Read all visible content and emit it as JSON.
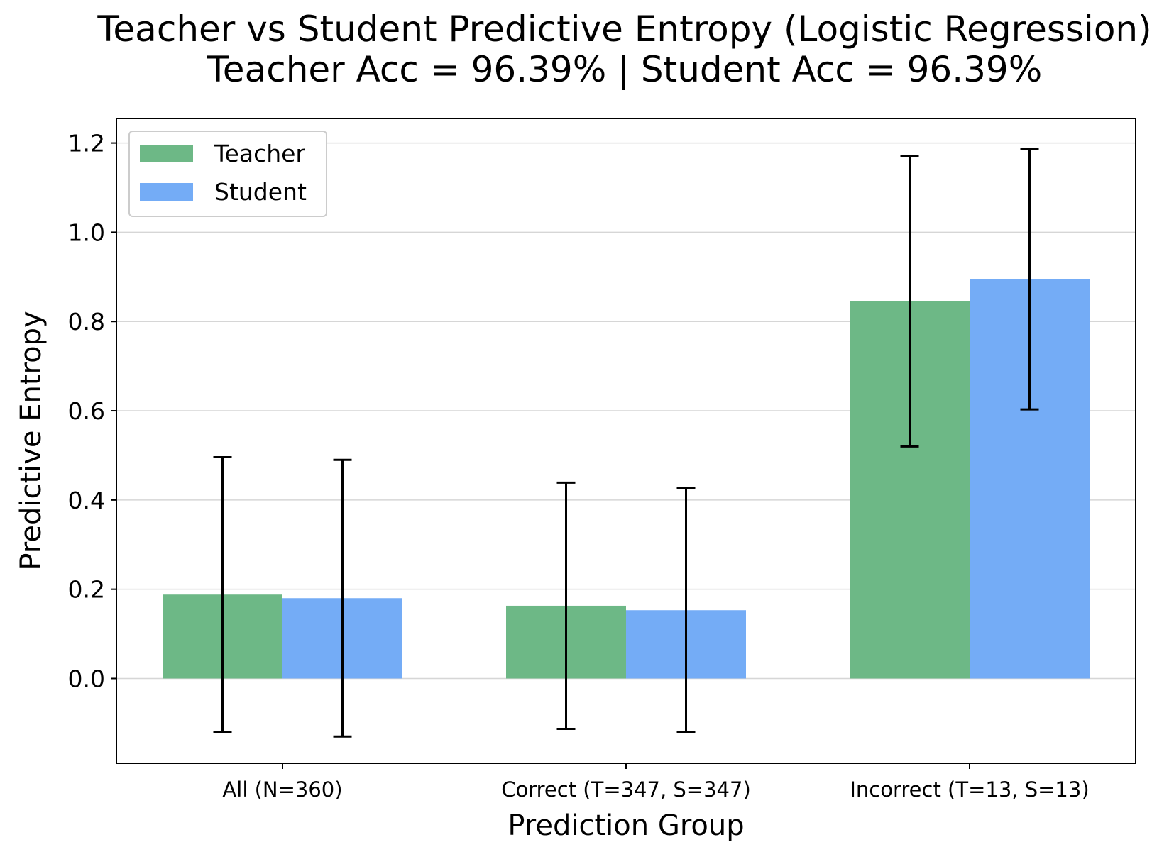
{
  "chart_data": {
    "type": "bar",
    "title_line1": "Teacher vs Student Predictive Entropy (Logistic Regression)",
    "title_line2": "Teacher Acc = 96.39%  |  Student Acc = 96.39%",
    "xlabel": "Prediction Group",
    "ylabel": "Predictive Entropy",
    "categories": [
      "All (N=360)",
      "Correct (T=347, S=347)",
      "Incorrect (T=13, S=13)"
    ],
    "ylim": [
      -0.19,
      1.255
    ],
    "yticks": [
      0.0,
      0.2,
      0.4,
      0.6,
      0.8,
      1.0,
      1.2
    ],
    "ytick_labels": [
      "0.0",
      "0.2",
      "0.4",
      "0.6",
      "0.8",
      "1.0",
      "1.2"
    ],
    "grid": "y",
    "legend_position": "top-left",
    "series": [
      {
        "name": "Teacher",
        "color": "#6db886",
        "values": [
          0.188,
          0.163,
          0.845
        ],
        "error": [
          0.308,
          0.276,
          0.325
        ]
      },
      {
        "name": "Student",
        "color": "#74acf6",
        "values": [
          0.18,
          0.153,
          0.895
        ],
        "error": [
          0.31,
          0.273,
          0.292
        ]
      }
    ]
  }
}
